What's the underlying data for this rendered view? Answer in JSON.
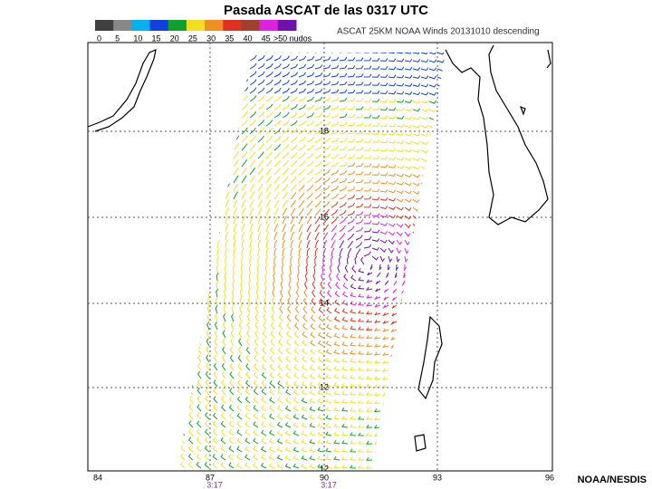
{
  "title": "Pasada ASCAT de las 0317 UTC",
  "legend": {
    "labels": [
      "0",
      "5",
      "10",
      "15",
      "20",
      "25",
      "30",
      "35",
      "40",
      "45",
      ">50 nudos"
    ],
    "colors": [
      "#404040",
      "#888888",
      "#00b0f0",
      "#1040e0",
      "#10a030",
      "#f0e020",
      "#f09020",
      "#e03020",
      "#a04030",
      "#e020e0",
      "#7010b0"
    ]
  },
  "header": "ASCAT 25KM NOAA Winds 20131010 descending",
  "lat_labels": [
    "18",
    "16",
    "14",
    "12",
    "12"
  ],
  "lon_labels": [
    "84",
    "87",
    "90",
    "93",
    "96"
  ],
  "time_labels": [
    "3:17",
    "3:17"
  ],
  "credit": "NOAA/NESDIS"
}
